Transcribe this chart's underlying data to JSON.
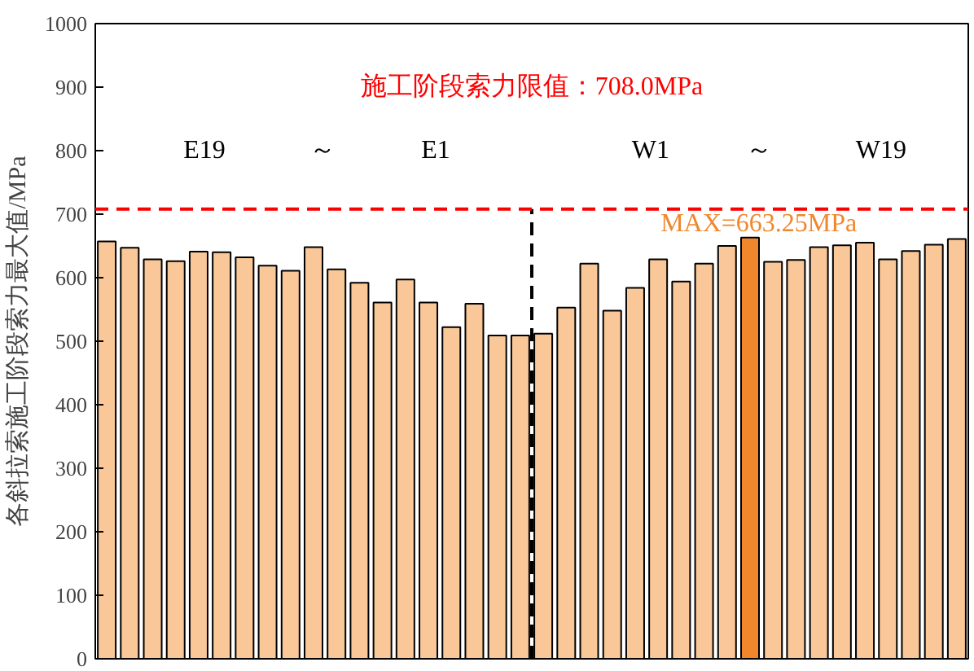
{
  "chart_data": {
    "type": "bar",
    "ylabel": "各斜拉索施工阶段索力最大值/MPa",
    "categories": [
      null,
      null,
      null,
      null,
      null,
      null,
      null,
      null,
      null,
      null,
      null,
      null,
      null,
      null,
      null,
      null,
      null,
      null,
      null,
      null,
      null,
      null,
      null,
      null,
      null,
      null,
      null,
      null,
      null,
      null,
      null,
      null,
      null,
      null,
      null,
      null,
      null,
      null
    ],
    "values": [
      657,
      647,
      629,
      626,
      641,
      640,
      632,
      619,
      611,
      648,
      613,
      592,
      561,
      597,
      561,
      522,
      559,
      509,
      509,
      512,
      553,
      622,
      548,
      584,
      629,
      594,
      622,
      650,
      663.25,
      625,
      628,
      648,
      651,
      655,
      629,
      642,
      652,
      661
    ],
    "colors": [
      "#fac898",
      "#fac898",
      "#fac898",
      "#fac898",
      "#fac898",
      "#fac898",
      "#fac898",
      "#fac898",
      "#fac898",
      "#fac898",
      "#fac898",
      "#fac898",
      "#fac898",
      "#fac898",
      "#fac898",
      "#fac898",
      "#fac898",
      "#fac898",
      "#fac898",
      "#fac898",
      "#fac898",
      "#fac898",
      "#fac898",
      "#fac898",
      "#fac898",
      "#fac898",
      "#fac898",
      "#fac898",
      "#f0872d",
      "#fac898",
      "#fac898",
      "#fac898",
      "#fac898",
      "#fac898",
      "#fac898",
      "#fac898",
      "#fac898",
      "#fac898"
    ],
    "ylim": [
      0,
      1000
    ],
    "yticks": [
      0,
      100,
      200,
      300,
      400,
      500,
      600,
      700,
      800,
      900,
      1000
    ],
    "ref_lines": [
      {
        "axis": "y",
        "value": 708,
        "label": "施工阶段索力限值：708.0MPa",
        "color": "#ff0000",
        "line_style": "dashed"
      }
    ],
    "annotations": [
      "E19",
      "～",
      "E1",
      "W1",
      "～",
      "W19",
      "MAX=663.25MPa"
    ],
    "tick_labels": "y",
    "grid": false
  }
}
